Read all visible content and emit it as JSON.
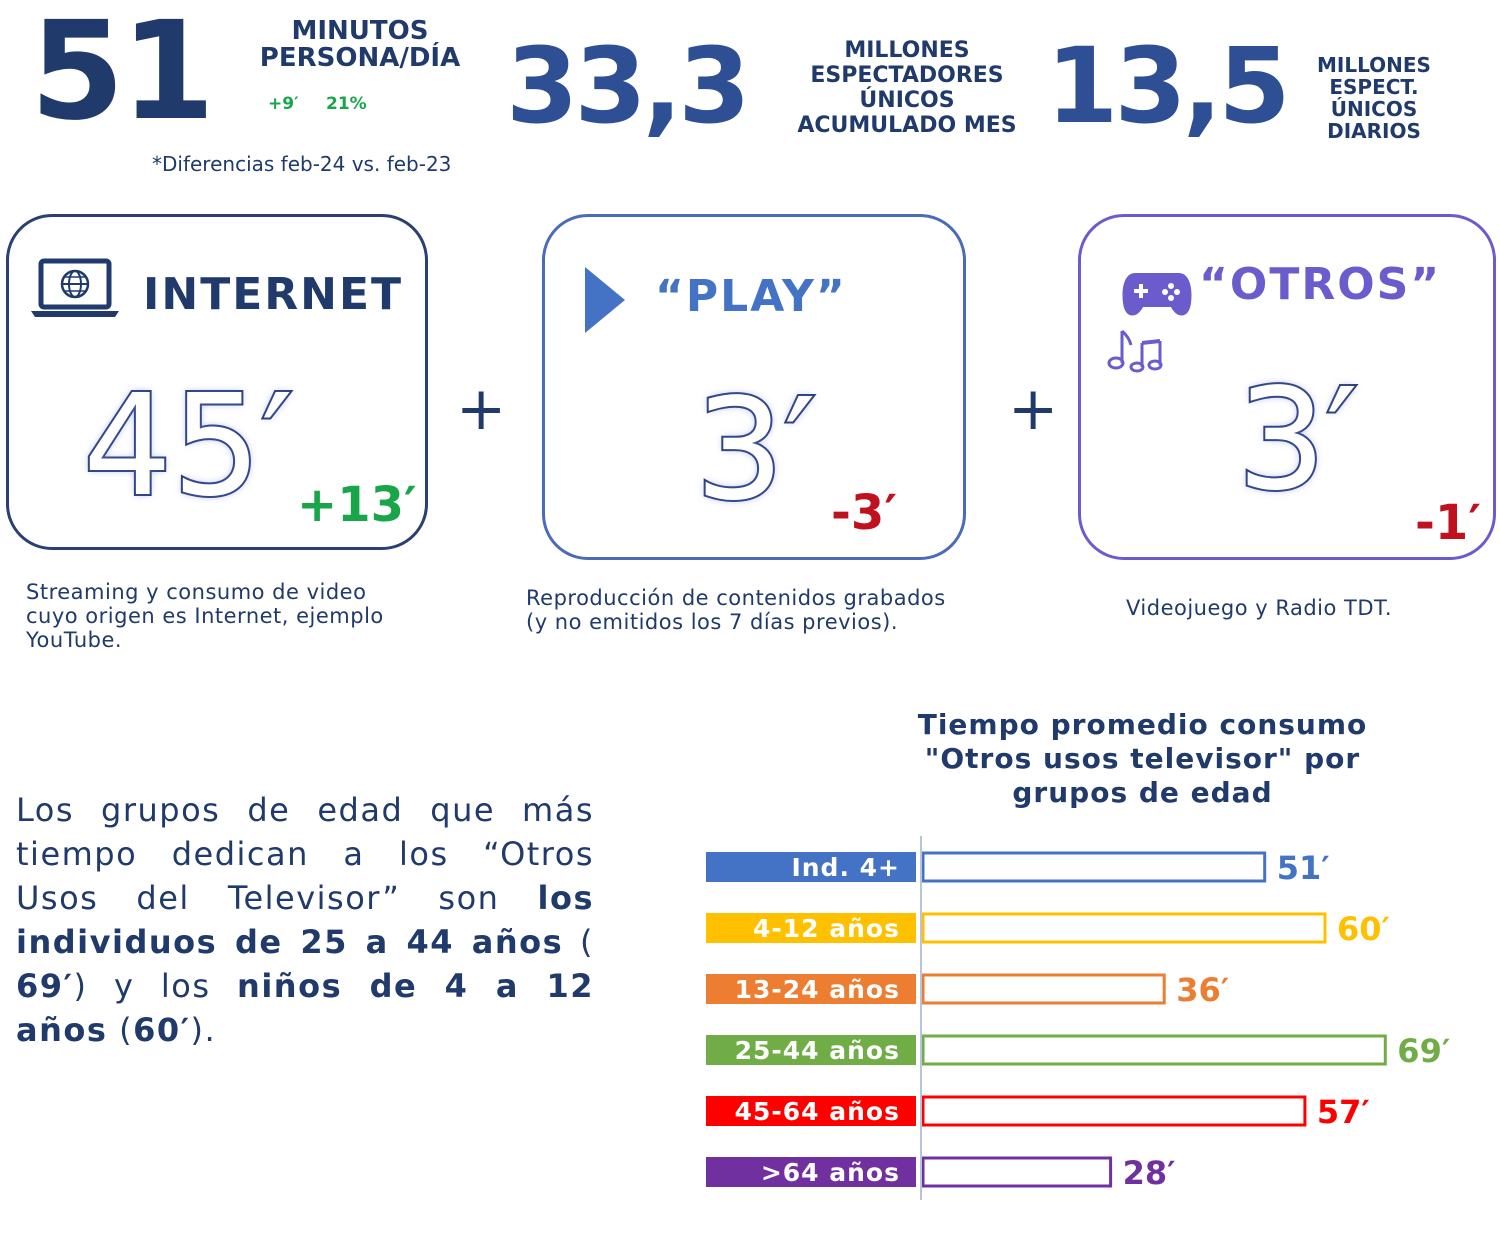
{
  "header": {
    "stat1": {
      "value": "51",
      "label_line1": "MINUTOS",
      "label_line2": "PERSONA/DÍA",
      "delta_minutes": "+9′",
      "delta_percent": "21%"
    },
    "footnote": "*Diferencias feb-24 vs. feb-23",
    "stat2": {
      "value": "33,3",
      "label_lines": [
        "MILLONES",
        "ESPECTADORES",
        "ÚNICOS",
        "ACUMULADO MES"
      ]
    },
    "stat3": {
      "value": "13,5",
      "label_lines": [
        "MILLONES",
        "ESPECT.",
        "ÚNICOS",
        "DIARIOS"
      ]
    }
  },
  "cards": [
    {
      "title": "INTERNET",
      "icon": "laptop-globe-icon",
      "value": "45′",
      "delta": "+13′",
      "delta_color": "#19a64a",
      "desc_lines": [
        "Streaming y consumo de video",
        "cuyo origen es Internet, ejemplo",
        "YouTube."
      ]
    },
    {
      "title": "“PLAY”",
      "icon": "play-icon",
      "value": "3′",
      "delta": "-3′",
      "delta_color": "#c0121e",
      "desc_lines": [
        "Reproducción de contenidos grabados",
        "(y no emitidos los 7 días previos)."
      ]
    },
    {
      "title": "“OTROS”",
      "icon": "gamepad-icon",
      "icon2": "music-notes-icon",
      "value": "3′",
      "delta": "-1′",
      "delta_color": "#c0121e",
      "desc_lines": [
        "Videojuego y Radio TDT."
      ]
    }
  ],
  "plus_sign": "+",
  "paragraph": {
    "t1": "Los grupos de edad que más tiempo dedican a los “Otros Usos del Televisor”  son ",
    "b1": "los individuos de 25 a 44 años",
    "t2": " ( ",
    "b2": "69′",
    "t3": ") y los ",
    "b3": "niños de 4 a 12 años",
    "t4": " (",
    "b4": "60′",
    "t5": ")."
  },
  "chart_data": {
    "type": "bar",
    "orientation": "horizontal",
    "title": "Tiempo promedio consumo \"Otros usos televisor\" por grupos de edad",
    "title_lines": [
      "Tiempo promedio consumo",
      "\"Otros usos televisor\" por",
      "grupos de edad"
    ],
    "categories": [
      "Ind. 4+",
      "4-12 años",
      "13-24 años",
      "25-44 años",
      "45-64 años",
      ">64 años"
    ],
    "values": [
      51,
      60,
      36,
      69,
      57,
      28
    ],
    "value_labels": [
      "51′",
      "60′",
      "36′",
      "69′",
      "57′",
      "28′"
    ],
    "colors": [
      "#4472c4",
      "#ffc000",
      "#ed7d31",
      "#70ad47",
      "#ff0000",
      "#7030a0"
    ],
    "unit": "minutos"
  }
}
